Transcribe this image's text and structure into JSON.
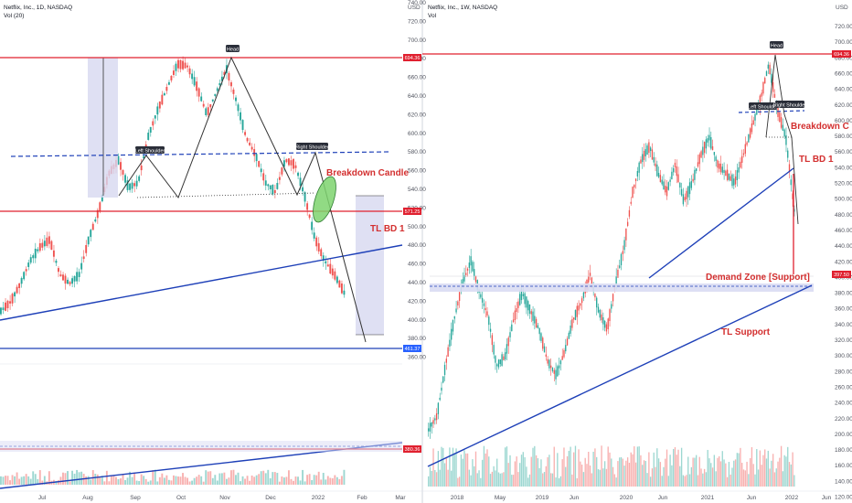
{
  "left_chart": {
    "title": "Netflix, Inc., 1D, NASDAQ",
    "volume_label": "Vol (20)",
    "currency": "USD",
    "x_ticks": [
      "Jul",
      "Aug",
      "Sep",
      "Oct",
      "Nov",
      "Dec",
      "2022",
      "Feb",
      "Mar"
    ],
    "y_ticks": [
      "740.00",
      "720.00",
      "700.00",
      "680.00",
      "660.00",
      "640.00",
      "620.00",
      "600.00",
      "580.00",
      "560.00",
      "540.00",
      "520.00",
      "500.00",
      "480.00",
      "460.00",
      "440.00",
      "420.00",
      "400.00",
      "380.00",
      "360.00"
    ],
    "price_badges": {
      "resistance": "694.36",
      "neckline": "571.25",
      "target": "461.37",
      "volume": "380.36"
    },
    "annotations": {
      "head": "Head",
      "left_shoulder": "Left Shoulder",
      "right_shoulder": "Right Shoulder",
      "breakdown": "Breakdown Candle",
      "tl_bd": "TL BD 1"
    }
  },
  "right_chart": {
    "title": "Netflix, Inc., 1W, NASDAQ",
    "volume_label": "Vol",
    "currency": "USD",
    "x_ticks": [
      "2018",
      "May",
      "2019",
      "Jun",
      "2020",
      "Jun",
      "2021",
      "Jun",
      "2022",
      "Jun"
    ],
    "y_ticks": [
      "720.00",
      "700.00",
      "680.00",
      "660.00",
      "640.00",
      "620.00",
      "600.00",
      "580.00",
      "560.00",
      "540.00",
      "520.00",
      "500.00",
      "480.00",
      "460.00",
      "440.00",
      "420.00",
      "400.00",
      "380.00",
      "360.00",
      "340.00",
      "320.00",
      "300.00",
      "280.00",
      "260.00",
      "240.00",
      "220.00",
      "200.00",
      "180.00",
      "160.00",
      "140.00",
      "120.00"
    ],
    "price_badges": {
      "resistance": "694.36",
      "demand": "397.50"
    },
    "annotations": {
      "head": "Head",
      "left_shoulder": "Left Shoulder",
      "right_shoulder": "Right Shoulder",
      "breakdown": "Breakdown C",
      "tl_bd": "TL BD 1",
      "demand_zone": "Demand Zone [Support]",
      "tl_support": "TL Support"
    }
  },
  "chart_data": [
    {
      "type": "line",
      "title": "Netflix, Inc., 1D, NASDAQ",
      "ylim": [
        360,
        740
      ],
      "x": [
        "Jul",
        "Aug",
        "Sep",
        "Oct",
        "Nov",
        "Dec",
        "2022",
        "Feb"
      ],
      "series": [
        {
          "values": [
            535,
            515,
            590,
            630,
            690,
            620,
            560,
            365
          ]
        }
      ]
    },
    {
      "type": "line",
      "title": "Netflix, Inc., 1W, NASDAQ",
      "ylim": [
        120,
        720
      ],
      "x": [
        "2018",
        "May",
        "2019",
        "Jun",
        "2020",
        "Jun",
        "2021",
        "Jun",
        "2022"
      ],
      "series": [
        {
          "values": [
            240,
            370,
            340,
            280,
            370,
            500,
            560,
            680,
            400
          ]
        }
      ]
    }
  ],
  "colors": {
    "up": "#26a69a",
    "down": "#ef5350",
    "red_line": "#e0202f",
    "blue_line": "#1e40b8",
    "zone": "#d9dcf3"
  }
}
